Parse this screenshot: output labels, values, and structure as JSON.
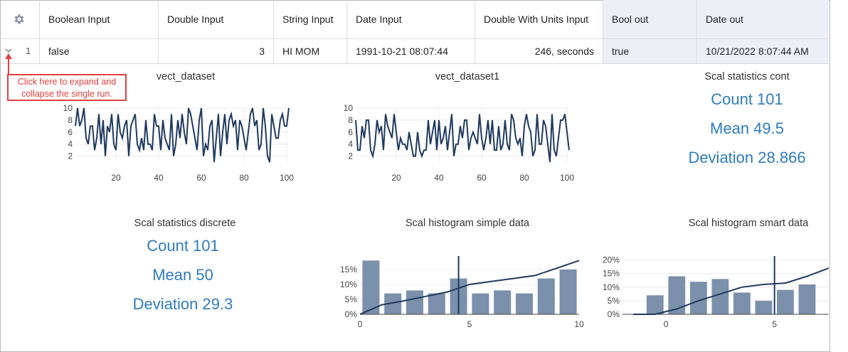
{
  "header": {
    "columns": [
      {
        "label": "Boolean Input"
      },
      {
        "label": "Double Input"
      },
      {
        "label": "String Input"
      },
      {
        "label": "Date Input"
      },
      {
        "label": "Double With Units Input"
      },
      {
        "label": "Bool out"
      },
      {
        "label": "Date out"
      }
    ]
  },
  "run": {
    "index": "1",
    "cells": [
      "false",
      "3",
      "HI MOM",
      "1991-10-21 08:07:44",
      "246, seconds",
      "true",
      "10/21/2022 8:07:44 AM"
    ]
  },
  "callout": {
    "text": "Click here to expand and collapse the single run."
  },
  "colors": {
    "accent": "#2f7cbf",
    "line": "#1f3a5f",
    "bar": "#7b90ab",
    "callout": "#e04040",
    "output_bg": "#ebf0f7"
  },
  "icons": {
    "settings": "gear-icon",
    "expand": "chevron-down-icon"
  },
  "stats_cont": {
    "title": "Scal statistics cont",
    "count": "Count 101",
    "mean": "Mean 49.5",
    "deviation": "Deviation 28.866"
  },
  "stats_discrete": {
    "title": "Scal statistics discrete",
    "count": "Count 101",
    "mean": "Mean 50",
    "deviation": "Deviation 29.3"
  },
  "chart_data": [
    {
      "type": "line",
      "title": "vect_dataset",
      "x_range": [
        1,
        101
      ],
      "ylim": [
        1,
        10
      ],
      "xticks": [
        20,
        40,
        60,
        80,
        100
      ],
      "yticks": [
        2,
        4,
        6,
        8,
        10
      ],
      "values": [
        7,
        10,
        7,
        8,
        10,
        5,
        4,
        7,
        7,
        3,
        5,
        9,
        4,
        8,
        2,
        7,
        6,
        9,
        4,
        3,
        9,
        6,
        5,
        7,
        8,
        2,
        7,
        8,
        9,
        4,
        3,
        5,
        3,
        8,
        4,
        4,
        3,
        9,
        7,
        7,
        3,
        8,
        5,
        4,
        3,
        9,
        2,
        4,
        8,
        5,
        9,
        6,
        4,
        10,
        9,
        7,
        5,
        3,
        8,
        10,
        2,
        4,
        3,
        7,
        8,
        1,
        5,
        9,
        2,
        6,
        9,
        4,
        8,
        9,
        7,
        8,
        3,
        8,
        7,
        5,
        3,
        6,
        9,
        10,
        7,
        8,
        3,
        4,
        10,
        7,
        2,
        1,
        9,
        7,
        5,
        5,
        8,
        9,
        7,
        7,
        10
      ]
    },
    {
      "type": "line",
      "title": "vect_dataset1",
      "x_range": [
        1,
        101
      ],
      "ylim": [
        1,
        10
      ],
      "xticks": [
        20,
        40,
        60,
        80,
        100
      ],
      "yticks": [
        2,
        4,
        6,
        8,
        10
      ],
      "values": [
        8,
        3,
        3,
        7,
        5,
        8,
        8,
        3,
        2,
        4,
        8,
        6,
        7,
        3,
        9,
        7,
        6,
        5,
        9,
        6,
        3,
        5,
        4,
        4,
        3,
        6,
        4,
        2,
        2,
        6,
        3,
        2,
        3,
        3,
        8,
        4,
        6,
        8,
        3,
        8,
        4,
        5,
        7,
        3,
        6,
        9,
        2,
        4,
        4,
        7,
        5,
        8,
        8,
        3,
        5,
        6,
        5,
        4,
        9,
        5,
        3,
        5,
        8,
        4,
        8,
        3,
        3,
        7,
        3,
        4,
        8,
        4,
        3,
        9,
        8,
        5,
        4,
        5,
        2,
        7,
        9,
        7,
        6,
        2,
        3,
        9,
        4,
        4,
        8,
        7,
        4,
        1,
        9,
        3,
        2,
        5,
        8,
        8,
        9,
        6,
        3
      ]
    },
    {
      "type": "bar",
      "title": "Scal histogram simple data",
      "bin_centers": [
        0.5,
        1.5,
        2.5,
        3.5,
        4.5,
        5.5,
        6.5,
        7.5,
        8.5,
        9.5
      ],
      "values": [
        18,
        7,
        8,
        7,
        12,
        7,
        8,
        7,
        12,
        15
      ],
      "cumulative_x": [
        0,
        1,
        2,
        3,
        4,
        5,
        6,
        7,
        8,
        9,
        10
      ],
      "cumulative": [
        0,
        3.2,
        4.5,
        6,
        7.5,
        10,
        11,
        12,
        13,
        15.5,
        18
      ],
      "marker_x": 4.5,
      "xlim": [
        0,
        10
      ],
      "ylim": [
        0,
        20
      ],
      "xticks": [
        0,
        5,
        10
      ],
      "yticks": [
        "0%",
        "5%",
        "10%",
        "15%"
      ]
    },
    {
      "type": "bar",
      "title": "Scal histogram smart data",
      "bin_centers": [
        -0.5,
        0.5,
        1.5,
        2.5,
        3.5,
        4.5,
        5.5,
        6.5,
        7.5
      ],
      "values": [
        7,
        14,
        12,
        13,
        8,
        5,
        9,
        11,
        0
      ],
      "cumulative_x": [
        -1.5,
        -0.5,
        0.5,
        1.5,
        2.5,
        3.5,
        4.5,
        5.5,
        6.5,
        7.5
      ],
      "cumulative": [
        0,
        0,
        2,
        5,
        7.5,
        10,
        11,
        11.5,
        14,
        17
      ],
      "marker_x": 5,
      "xlim": [
        -2,
        7.5
      ],
      "ylim": [
        0,
        22
      ],
      "xticks": [
        0,
        5
      ],
      "yticks": [
        "0%",
        "5%",
        "10%",
        "15%",
        "20%"
      ]
    }
  ]
}
